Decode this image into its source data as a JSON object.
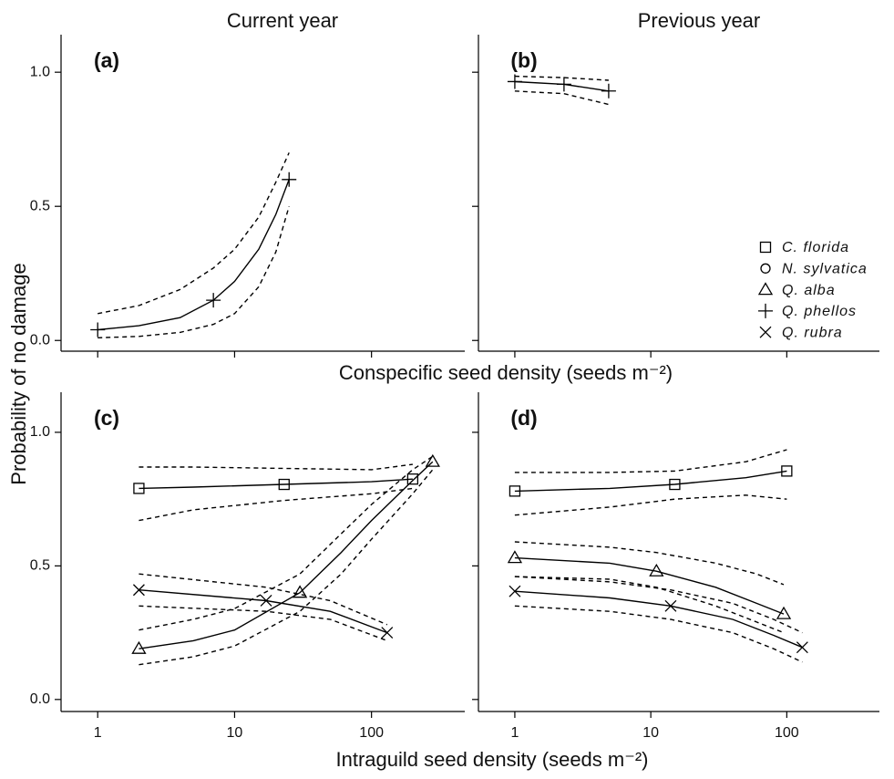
{
  "figure": {
    "ylabel": "Probability of no damage",
    "xlabel_top": "Conspecific seed density (seeds m⁻²)",
    "xlabel_bottom": "Intraguild seed density (seeds m⁻²)"
  },
  "chart_data": [
    {
      "type": "line",
      "column_title": "Current year",
      "panel_label": "(a)",
      "log_x": true,
      "xlim": [
        0.54,
        480
      ],
      "ylim": [
        -0.04,
        1.14
      ],
      "xticks": [
        1,
        10,
        100
      ],
      "yticks": [
        {
          "value": 0,
          "label": "0.0"
        },
        {
          "value": 0.5,
          "label": "0.5"
        },
        {
          "value": 1,
          "label": "1.0"
        }
      ],
      "show_xtick_labels": false,
      "show_ytick_labels": true,
      "series": [
        {
          "name": "Q. phellos",
          "marker": "plus",
          "color": "#000000",
          "x": [
            1,
            2,
            4,
            7,
            10,
            15,
            20,
            25
          ],
          "values": [
            0.04,
            0.055,
            0.085,
            0.15,
            0.22,
            0.34,
            0.47,
            0.6
          ],
          "lower": [
            0.01,
            0.015,
            0.03,
            0.06,
            0.1,
            0.2,
            0.33,
            0.5
          ],
          "upper": [
            0.1,
            0.13,
            0.19,
            0.27,
            0.34,
            0.46,
            0.59,
            0.7
          ],
          "point_x": [
            1,
            7,
            25
          ],
          "point_y": [
            0.04,
            0.15,
            0.6
          ]
        }
      ]
    },
    {
      "type": "line",
      "column_title": "Previous year",
      "panel_label": "(b)",
      "log_x": true,
      "xlim": [
        0.54,
        480
      ],
      "ylim": [
        -0.04,
        1.14
      ],
      "xticks": [
        1,
        10,
        100
      ],
      "yticks": [
        0,
        0.5,
        1
      ],
      "show_xtick_labels": false,
      "show_ytick_labels": false,
      "legend": [
        {
          "name": "C. florida",
          "marker": "square"
        },
        {
          "name": "N. sylvatica",
          "marker": "circle"
        },
        {
          "name": "Q. alba",
          "marker": "triangle"
        },
        {
          "name": "Q. phellos",
          "marker": "plus"
        },
        {
          "name": "Q. rubra",
          "marker": "cross"
        }
      ],
      "series": [
        {
          "name": "Q. phellos",
          "marker": "plus",
          "color": "#000000",
          "x": [
            1,
            2.3,
            4.9
          ],
          "values": [
            0.965,
            0.955,
            0.93
          ],
          "lower": [
            0.93,
            0.92,
            0.88
          ],
          "upper": [
            0.985,
            0.98,
            0.97
          ],
          "point_x": [
            1,
            2.3,
            4.9
          ],
          "point_y": [
            0.965,
            0.955,
            0.93
          ]
        }
      ]
    },
    {
      "type": "line",
      "panel_label": "(c)",
      "log_x": true,
      "xlim": [
        0.54,
        480
      ],
      "ylim": [
        -0.045,
        1.15
      ],
      "xticks": [
        1,
        10,
        100
      ],
      "yticks": [
        {
          "value": 0,
          "label": "0.0"
        },
        {
          "value": 0.5,
          "label": "0.5"
        },
        {
          "value": 1,
          "label": "1.0"
        }
      ],
      "show_xtick_labels": true,
      "show_ytick_labels": true,
      "series": [
        {
          "name": "C. florida",
          "marker": "square",
          "color": "#000000",
          "x": [
            2,
            5,
            23,
            100,
            200
          ],
          "values": [
            0.79,
            0.795,
            0.805,
            0.815,
            0.825
          ],
          "lower": [
            0.67,
            0.71,
            0.745,
            0.77,
            0.79
          ],
          "upper": [
            0.87,
            0.87,
            0.865,
            0.86,
            0.88
          ],
          "point_x": [
            2,
            23,
            200
          ],
          "point_y": [
            0.79,
            0.805,
            0.825
          ]
        },
        {
          "name": "Q. alba",
          "marker": "triangle",
          "color": "#000000",
          "x": [
            2,
            5,
            10,
            30,
            60,
            100,
            200,
            280
          ],
          "values": [
            0.19,
            0.22,
            0.26,
            0.4,
            0.55,
            0.67,
            0.82,
            0.89
          ],
          "lower": [
            0.13,
            0.16,
            0.2,
            0.33,
            0.47,
            0.6,
            0.77,
            0.86
          ],
          "upper": [
            0.26,
            0.3,
            0.34,
            0.47,
            0.62,
            0.73,
            0.86,
            0.91
          ],
          "point_x": [
            2,
            30,
            280
          ],
          "point_y": [
            0.19,
            0.4,
            0.89
          ]
        },
        {
          "name": "Q. rubra",
          "marker": "cross",
          "color": "#000000",
          "x": [
            2,
            17,
            50,
            130
          ],
          "values": [
            0.41,
            0.37,
            0.33,
            0.25
          ],
          "lower": [
            0.35,
            0.33,
            0.3,
            0.22
          ],
          "upper": [
            0.47,
            0.42,
            0.37,
            0.28
          ],
          "point_x": [
            2,
            17,
            130
          ],
          "point_y": [
            0.41,
            0.37,
            0.25
          ]
        }
      ]
    },
    {
      "type": "line",
      "panel_label": "(d)",
      "log_x": true,
      "xlim": [
        0.54,
        480
      ],
      "ylim": [
        -0.045,
        1.15
      ],
      "xticks": [
        1,
        10,
        100
      ],
      "yticks": [
        0,
        0.5,
        1
      ],
      "show_xtick_labels": true,
      "show_ytick_labels": false,
      "series": [
        {
          "name": "C. florida",
          "marker": "square",
          "color": "#000000",
          "x": [
            1,
            5,
            15,
            50,
            100
          ],
          "values": [
            0.78,
            0.79,
            0.805,
            0.83,
            0.855
          ],
          "lower": [
            0.69,
            0.72,
            0.75,
            0.765,
            0.75
          ],
          "upper": [
            0.85,
            0.85,
            0.855,
            0.89,
            0.935
          ],
          "point_x": [
            1,
            15,
            100
          ],
          "point_y": [
            0.78,
            0.805,
            0.855
          ]
        },
        {
          "name": "Q. alba",
          "marker": "triangle",
          "color": "#000000",
          "x": [
            1,
            5,
            11,
            30,
            60,
            95
          ],
          "values": [
            0.53,
            0.51,
            0.48,
            0.42,
            0.36,
            0.32
          ],
          "lower": [
            0.46,
            0.45,
            0.42,
            0.35,
            0.29,
            0.25
          ],
          "upper": [
            0.59,
            0.57,
            0.55,
            0.51,
            0.47,
            0.43
          ],
          "point_x": [
            1,
            11,
            95
          ],
          "point_y": [
            0.53,
            0.48,
            0.32
          ]
        },
        {
          "name": "Q. rubra",
          "marker": "cross",
          "color": "#000000",
          "x": [
            1,
            5,
            14,
            40,
            80,
            130
          ],
          "values": [
            0.405,
            0.38,
            0.35,
            0.3,
            0.24,
            0.195
          ],
          "lower": [
            0.35,
            0.33,
            0.3,
            0.25,
            0.19,
            0.14
          ],
          "upper": [
            0.46,
            0.44,
            0.41,
            0.36,
            0.3,
            0.25
          ],
          "point_x": [
            1,
            14,
            130
          ],
          "point_y": [
            0.405,
            0.35,
            0.195
          ]
        }
      ]
    }
  ]
}
